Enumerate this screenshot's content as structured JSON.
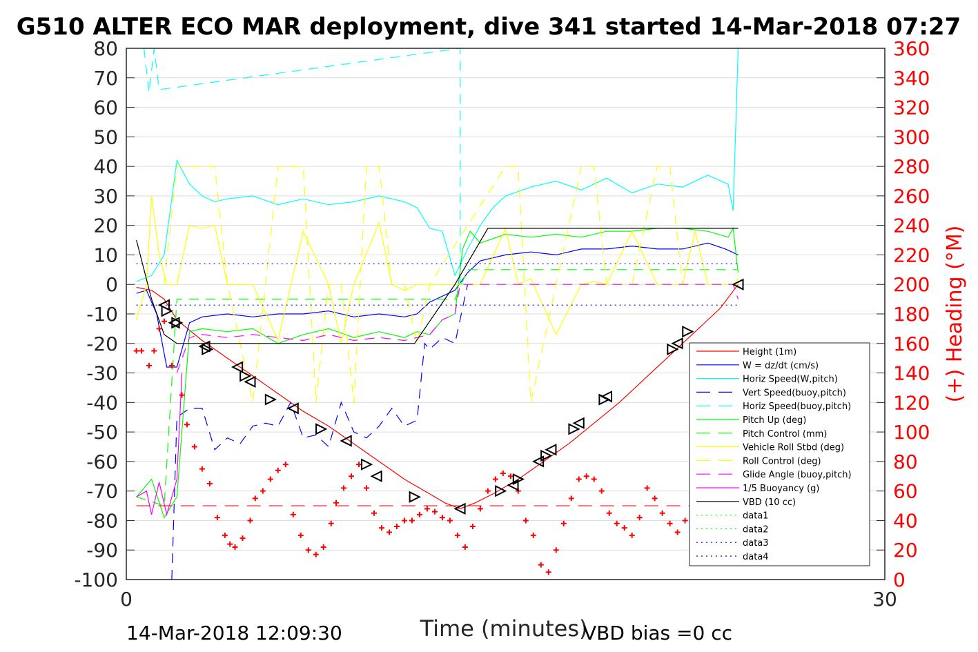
{
  "chart_data": {
    "type": "line",
    "title": "G510 ALTER ECO MAR deployment, dive 341 started 14-Mar-2018 07:27",
    "xlabel": "Time (minutes)",
    "ylabel": "",
    "ylabel_right": "(+) Heading (°M)",
    "xlim": [
      0,
      30
    ],
    "ylim": [
      -100,
      80
    ],
    "ylim_right": [
      0,
      360
    ],
    "x_ticks": [
      "0",
      "30"
    ],
    "y_ticks": [
      "80",
      "70",
      "60",
      "50",
      "40",
      "30",
      "20",
      "10",
      "0",
      "-10",
      "-20",
      "-30",
      "-40",
      "-50",
      "-60",
      "-70",
      "-80",
      "-90",
      "-100"
    ],
    "y_ticks_right": [
      "360",
      "340",
      "320",
      "300",
      "280",
      "260",
      "240",
      "220",
      "200",
      "180",
      "160",
      "140",
      "120",
      "100",
      "80",
      "60",
      "40",
      "20",
      "0"
    ],
    "grid": "horizontal",
    "legend_position": "bottom-right",
    "footer_left": "14-Mar-2018 12:09:30",
    "footer_right": "VBD bias =0 cc",
    "series": [
      {
        "name": "Height (1m)",
        "color": "#ff0000",
        "style": "solid",
        "x": [
          0.4,
          1.0,
          1.5,
          2.0,
          3.0,
          4.0,
          5.0,
          6.0,
          7.0,
          8.0,
          9.0,
          10.0,
          11.0,
          12.0,
          12.6,
          13.2,
          13.8,
          14.5,
          15.5,
          16.5,
          17.5,
          18.5,
          19.5,
          20.5,
          21.5,
          22.5,
          23.5,
          24.2
        ],
        "y": [
          -1,
          -2,
          -5,
          -12,
          -19,
          -25,
          -31,
          -37,
          -43,
          -48,
          -54,
          -60,
          -66,
          -71,
          -74,
          -76,
          -74,
          -71,
          -66,
          -60,
          -54,
          -47,
          -40,
          -32,
          -24,
          -16,
          -8,
          0
        ]
      },
      {
        "name": "W = dz/dt (cm/s)",
        "color": "#0000ff",
        "style": "solid",
        "x": [
          0.4,
          0.8,
          1.2,
          1.6,
          2.0,
          2.5,
          3.0,
          4.0,
          5.0,
          6.0,
          7.0,
          8.0,
          9.0,
          10.0,
          11.0,
          11.5,
          12.0,
          12.5,
          13.0,
          13.5,
          14.0,
          15.0,
          16.0,
          17.0,
          18.0,
          19.0,
          20.0,
          21.0,
          22.0,
          23.0,
          23.7,
          24.2
        ],
        "y": [
          -3,
          -2,
          -10,
          -28,
          -28,
          -13,
          -11,
          -10,
          -11,
          -10,
          -10,
          -9,
          -11,
          -10,
          -11,
          -10,
          -6,
          -4,
          -2,
          4,
          8,
          10,
          11,
          10,
          12,
          12,
          13,
          12,
          12,
          14,
          12,
          10
        ]
      },
      {
        "name": "Horiz Speed(W,pitch)",
        "color": "#00ffff",
        "style": "solid",
        "x": [
          0.4,
          1.0,
          1.5,
          2.0,
          2.5,
          3.0,
          3.5,
          4.0,
          5.0,
          6.0,
          7.0,
          8.0,
          9.0,
          10.0,
          11.0,
          11.5,
          12.0,
          12.5,
          13.0,
          13.5,
          14.0,
          14.5,
          15.0,
          16.0,
          17.0,
          18.0,
          19.0,
          20.0,
          21.0,
          22.0,
          23.0,
          23.8,
          24.0,
          24.2
        ],
        "y": [
          1,
          3,
          10,
          42,
          34,
          30,
          28,
          29,
          30,
          27,
          29,
          27,
          28,
          30,
          28,
          26,
          19,
          18,
          3,
          12,
          20,
          26,
          30,
          33,
          35,
          32,
          36,
          31,
          34,
          33,
          37,
          34,
          25,
          80
        ]
      },
      {
        "name": "Vert Speed(buoy,pitch)",
        "color": "#0000ff",
        "style": "dashed",
        "x": [
          1.8,
          2.0,
          2.5,
          3.0,
          3.5,
          4.0,
          4.5,
          5.0,
          5.5,
          6.0,
          6.5,
          7.0,
          7.5,
          8.0,
          8.5,
          9.0,
          9.5,
          10.0,
          10.5,
          11.0,
          11.5,
          11.8,
          12.0,
          12.5,
          13.0,
          13.5
        ],
        "y": [
          -100,
          -45,
          -42,
          -42,
          -56,
          -52,
          -54,
          -48,
          -47,
          -48,
          -40,
          -52,
          -51,
          -55,
          -40,
          -50,
          -52,
          -48,
          -42,
          -48,
          -46,
          -20,
          -22,
          -18,
          -20,
          0
        ]
      },
      {
        "name": "Horiz Speed(buoy,pitch)",
        "color": "#00ffff",
        "style": "dashed",
        "x": [
          0.7,
          0.9,
          1.1,
          1.3,
          13.2,
          13.2,
          13.4
        ],
        "y": [
          80,
          65,
          80,
          66,
          80,
          0,
          0
        ]
      },
      {
        "name": "Pitch Up (deg)",
        "color": "#00ff00",
        "style": "solid",
        "x": [
          0.4,
          1.0,
          1.5,
          2.0,
          2.5,
          3.0,
          4.0,
          5.0,
          6.0,
          7.0,
          8.0,
          9.0,
          10.0,
          11.0,
          11.5,
          12.0,
          12.5,
          13.0,
          13.3,
          13.6,
          14.0,
          15.0,
          16.0,
          17.0,
          18.0,
          19.0,
          20.0,
          21.0,
          22.0,
          23.0,
          23.8,
          24.0,
          24.2
        ],
        "y": [
          -72,
          -66,
          -79,
          -72,
          -16,
          -15,
          -16,
          -15,
          -20,
          -17,
          -15,
          -18,
          -16,
          -18,
          -16,
          -17,
          -12,
          -10,
          12,
          18,
          14,
          17,
          16,
          17,
          16,
          18,
          18,
          19,
          19,
          18,
          16,
          19,
          4
        ]
      },
      {
        "name": "Pitch Control (mm)",
        "color": "#00ff00",
        "style": "dashed",
        "x": [
          0.4,
          1.5,
          2.0,
          2.5,
          13.0,
          13.5,
          24.2
        ],
        "y": [
          -72,
          -75,
          -5,
          -5,
          -5,
          5,
          5
        ]
      },
      {
        "name": "Vehicle Roll Stbd (deg)",
        "color": "#ffff00",
        "style": "solid",
        "x": [
          0.4,
          0.8,
          1.0,
          1.3,
          1.6,
          2.0,
          2.5,
          3.0,
          3.5,
          4.0,
          5.0,
          6.0,
          7.0,
          8.0,
          8.5,
          9.0,
          10.0,
          10.5,
          11.0,
          11.5,
          12.0,
          13.0,
          14.0,
          15.0,
          15.5,
          16.0,
          17.0,
          18.0,
          18.5,
          19.0,
          20.0,
          21.0,
          22.0,
          22.5,
          23.0,
          24.0,
          24.2
        ],
        "y": [
          -12,
          0,
          30,
          10,
          0,
          0,
          20,
          19,
          20,
          0,
          0,
          -19,
          18,
          0,
          -20,
          0,
          21,
          0,
          -2,
          0,
          0,
          0,
          0,
          19,
          0,
          2,
          -17,
          0,
          1,
          0,
          18,
          0,
          0,
          18,
          0,
          0,
          2
        ]
      },
      {
        "name": "Roll Control (deg)",
        "color": "#ffff00",
        "style": "dashed",
        "x": [
          1.5,
          2.0,
          2.5,
          3.0,
          3.5,
          4.0,
          5.0,
          5.5,
          6.0,
          7.0,
          7.5,
          8.0,
          8.5,
          9.0,
          9.5,
          10.0,
          10.5,
          11.0,
          11.5,
          12.0,
          15.0,
          15.5,
          16.0,
          18.0,
          18.5,
          19.0,
          20.0,
          21.0,
          21.5,
          22.0,
          24.2
        ],
        "y": [
          0,
          40,
          40,
          40,
          40,
          0,
          -40,
          0,
          40,
          40,
          -40,
          0,
          0,
          -40,
          40,
          40,
          0,
          0,
          -20,
          0,
          40,
          40,
          -40,
          40,
          40,
          0,
          0,
          40,
          40,
          0,
          0
        ]
      },
      {
        "name": "Glide Angle (buoy,pitch)",
        "color": "#ff00ff",
        "style": "dashed",
        "x": [
          2.0,
          2.5,
          3.0,
          4.0,
          5.0,
          6.0,
          7.0,
          8.0,
          9.0,
          10.0,
          11.0,
          11.5,
          12.0,
          12.5,
          13.0,
          13.2,
          24.0,
          24.2
        ],
        "y": [
          -30,
          -18,
          -17,
          -18,
          -17,
          -18,
          -19,
          -17,
          -19,
          -18,
          -19,
          -18,
          -17,
          -12,
          -10,
          0,
          0,
          -5
        ]
      },
      {
        "name": "1/5 Buoyancy (g)",
        "color": "#ff00ff",
        "style": "solid",
        "x": [
          0.4,
          0.8,
          1.0,
          1.3,
          1.6,
          2.0,
          2.2
        ],
        "y": [
          -72,
          -70,
          -78,
          -67,
          -78,
          -66,
          -30
        ]
      },
      {
        "name": "VBD (10 cc)",
        "color": "#000000",
        "style": "solid",
        "x": [
          0.4,
          1.0,
          1.5,
          2.0,
          11.4,
          13.0,
          14.3,
          24.2
        ],
        "y": [
          15,
          -5,
          -17,
          -20,
          -20,
          0,
          19,
          19
        ]
      },
      {
        "name": "data1",
        "color": "#00ff00",
        "style": "dotted",
        "x": [],
        "y": []
      },
      {
        "name": "data2",
        "color": "#00ff00",
        "style": "dotted",
        "x": [],
        "y": []
      },
      {
        "name": "data3",
        "color": "#0000ff",
        "style": "dotted",
        "x": [
          0.4,
          24.2
        ],
        "y": [
          7,
          7
        ]
      },
      {
        "name": "data4",
        "color": "#0000ff",
        "style": "dotted",
        "x": [
          0.4,
          24.2
        ],
        "y": [
          -7,
          -7
        ]
      }
    ],
    "heading_target": {
      "color": "#ff0000",
      "style": "dashed",
      "value_deg": 50
    },
    "heading_points": {
      "color": "#ff0000",
      "marker": "+",
      "x": [
        0.4,
        0.6,
        0.9,
        1.1,
        1.3,
        1.5,
        1.8,
        2.2,
        2.4,
        2.7,
        3.0,
        3.3,
        3.6,
        3.9,
        4.1,
        4.3,
        4.6,
        4.9,
        5.1,
        5.4,
        5.7,
        6.0,
        6.3,
        6.6,
        6.9,
        7.2,
        7.5,
        7.8,
        8.1,
        8.3,
        8.6,
        8.9,
        9.2,
        9.5,
        9.8,
        10.1,
        10.4,
        10.7,
        11.0,
        11.3,
        11.6,
        11.9,
        12.2,
        12.5,
        12.8,
        13.1,
        13.4,
        13.7,
        14.0,
        14.3,
        14.6,
        14.9,
        15.2,
        15.5,
        15.8,
        16.1,
        16.4,
        16.7,
        17.0,
        17.3,
        17.6,
        17.9,
        18.2,
        18.5,
        18.8,
        19.1,
        19.4,
        19.7,
        20.0,
        20.3,
        20.6,
        20.9,
        21.2,
        21.5,
        21.8,
        22.1,
        22.4,
        22.7
      ],
      "y": [
        155,
        155,
        145,
        155,
        170,
        175,
        145,
        125,
        105,
        90,
        75,
        65,
        42,
        30,
        24,
        22,
        28,
        40,
        55,
        60,
        68,
        74,
        78,
        44,
        30,
        20,
        17,
        22,
        38,
        52,
        62,
        70,
        78,
        62,
        45,
        35,
        32,
        36,
        40,
        40,
        44,
        48,
        46,
        42,
        40,
        30,
        22,
        36,
        48,
        60,
        68,
        72,
        70,
        60,
        40,
        30,
        10,
        5,
        20,
        38,
        55,
        68,
        70,
        68,
        60,
        45,
        38,
        35,
        30,
        42,
        62,
        55,
        45,
        38,
        32,
        40,
        55,
        72
      ]
    },
    "turn_markers": {
      "color": "#000000",
      "marker": "triangle",
      "x": [
        1.5,
        1.6,
        1.9,
        2.0,
        3.1,
        3.2,
        4.4,
        4.7,
        4.9,
        5.7,
        6.6,
        7.7,
        8.7,
        9.5,
        9.9,
        11.4,
        13.2,
        14.8,
        15.3,
        15.5,
        16.3,
        16.6,
        16.8,
        17.7,
        17.9,
        18.9,
        19.0,
        21.6,
        21.8,
        22.2,
        24.2
      ],
      "y": [
        -7,
        -9,
        -13,
        -13,
        -21,
        -22,
        -28,
        -31,
        -33,
        -39,
        -42,
        -49,
        -53,
        -61,
        -65,
        -72,
        -76,
        -70,
        -68,
        -66,
        -60,
        -58,
        -56,
        -49,
        -47,
        -39,
        -38,
        -22,
        -20,
        -16,
        0
      ]
    }
  }
}
